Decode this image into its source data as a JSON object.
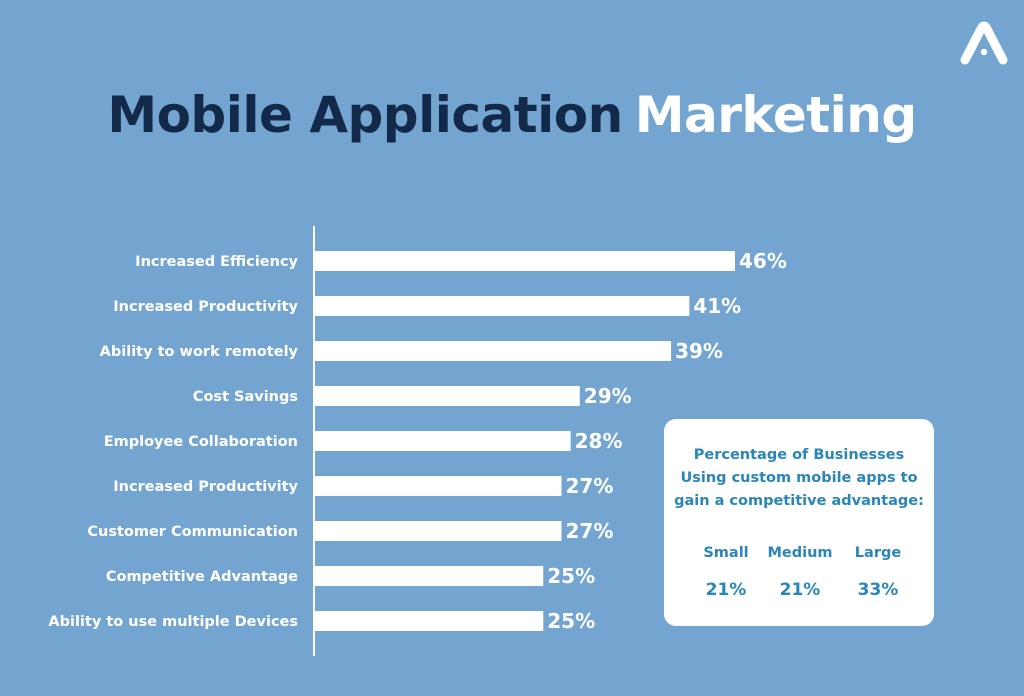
{
  "title": {
    "part1": "Mobile Application",
    "part2": "Marketing"
  },
  "colors": {
    "background": "#74a5d0",
    "title_dark": "#13294a",
    "bar": "#ffffff",
    "box_text": "#2a86b7"
  },
  "logo": {
    "icon": "brand-a-logo-icon"
  },
  "chart_data": {
    "type": "bar",
    "orientation": "horizontal",
    "categories": [
      "Increased Efficiency",
      "Increased Productivity",
      "Ability to work remotely",
      "Cost Savings",
      "Employee Collaboration",
      "Increased Productivity",
      "Customer Communication",
      "Competitive Advantage",
      "Ability to use multiple Devices"
    ],
    "values": [
      46,
      41,
      39,
      29,
      28,
      27,
      27,
      25,
      25
    ],
    "value_labels": [
      "46%",
      "41%",
      "39%",
      "29%",
      "28%",
      "27%",
      "27%",
      "25%",
      "25%"
    ],
    "unit": "%",
    "xlim": [
      0,
      46
    ],
    "grid": false,
    "legend": "none"
  },
  "info_box": {
    "title_lines": [
      "Percentage of Businesses",
      "Using custom mobile apps to",
      "gain a competitive advantage:"
    ],
    "columns": [
      {
        "label": "Small",
        "value": "21%"
      },
      {
        "label": "Medium",
        "value": "21%"
      },
      {
        "label": "Large",
        "value": "33%"
      }
    ]
  }
}
